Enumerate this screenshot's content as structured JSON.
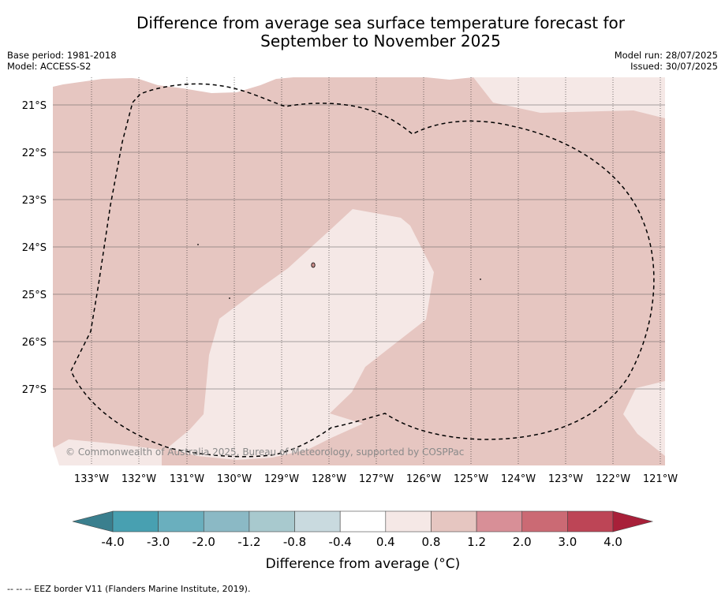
{
  "header": {
    "title_line1": "Difference from average sea surface temperature forecast for",
    "title_line2": "September to November 2025",
    "base_period": "Base period: 1981-2018",
    "model": "Model: ACCESS-S2",
    "model_run": "Model run: 28/07/2025",
    "issued": "Issued: 30/07/2025"
  },
  "map": {
    "lat_labels": [
      "21°S",
      "22°S",
      "23°S",
      "24°S",
      "25°S",
      "26°S",
      "27°S"
    ],
    "lon_labels": [
      "133°W",
      "132°W",
      "131°W",
      "130°W",
      "129°W",
      "128°W",
      "127°W",
      "126°W",
      "125°W",
      "124°W",
      "123°W",
      "122°W",
      "121°W"
    ],
    "copyright": "© Commonwealth of Australia 2025, Bureau of Meteorology, supported by COSPPac",
    "colors": {
      "band_0_4_0_8": "#f5e8e6",
      "band_0_8_1_2": "#e6c6c1",
      "eez": "#000000"
    }
  },
  "colorbar": {
    "title": "Difference from average (°C)",
    "tick_labels": [
      "-4.0",
      "-3.0",
      "-2.0",
      "-1.2",
      "-0.8",
      "-0.4",
      "0.4",
      "0.8",
      "1.2",
      "2.0",
      "3.0",
      "4.0"
    ],
    "colors": [
      "#3a7f8e",
      "#48a0b1",
      "#6aafbe",
      "#8bb9c5",
      "#a8c9ce",
      "#c9dadf",
      "#ffffff",
      "#f5e8e6",
      "#e6c6c1",
      "#d88f97",
      "#cb6a74",
      "#bd4556",
      "#a82039"
    ]
  },
  "footer": {
    "text": "--  --  -- EEZ border V11 (Flanders Marine Institute, 2019)."
  }
}
